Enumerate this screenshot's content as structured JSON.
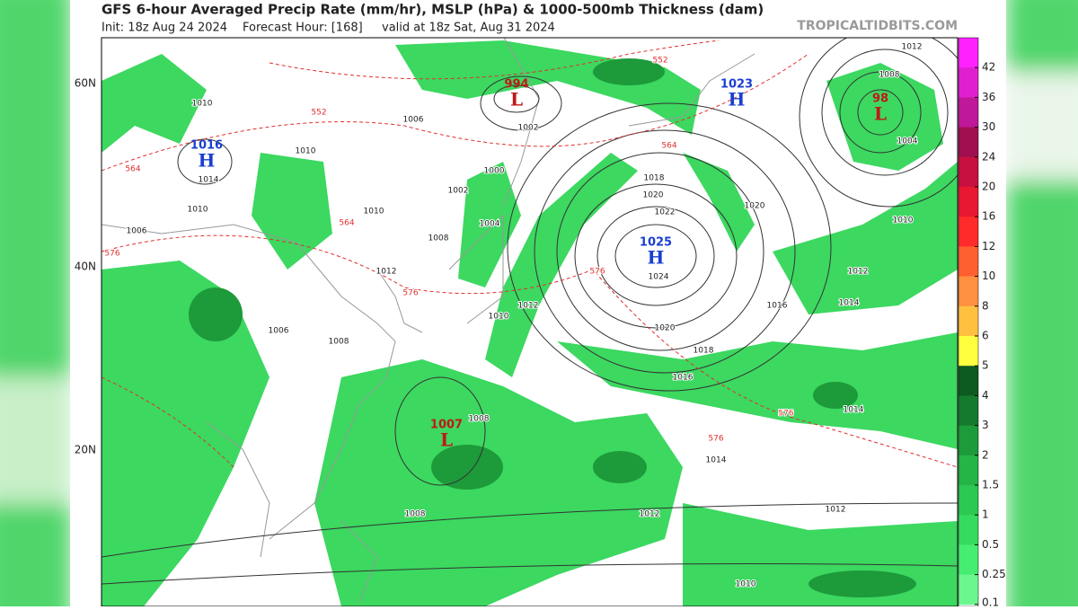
{
  "header": {
    "title": "GFS 6-hour Averaged Precip Rate (mm/hr), MSLP (hPa) & 1000-500mb Thickness (dam)",
    "init": "Init: 18z Aug 24 2024",
    "forecast_hour": "Forecast Hour: [168]",
    "valid": "valid at 18z Sat, Aug 31 2024",
    "site": "TROPICALTIDBITS.COM"
  },
  "map": {
    "lat_labels": [
      "60N",
      "40N",
      "20N"
    ],
    "centers": [
      {
        "symbol": "H",
        "pressure": 1025,
        "color": "#1a3fd0"
      },
      {
        "symbol": "L",
        "pressure": 994,
        "color": "#c01818"
      },
      {
        "symbol": "H",
        "pressure": 1023,
        "color": "#1a3fd0"
      },
      {
        "symbol": "L",
        "pressure": "98",
        "color": "#c01818"
      },
      {
        "symbol": "H",
        "pressure": 1016,
        "color": "#1a3fd0"
      },
      {
        "symbol": "L",
        "pressure": 1007,
        "color": "#c01818"
      }
    ],
    "isobar_labels": [
      1020,
      1022,
      1024,
      1020,
      1018,
      1016,
      1018,
      1014,
      1012,
      1012,
      1010,
      1008,
      1008,
      1010,
      1012,
      1014,
      1016,
      1020,
      1002,
      1000,
      1002,
      1004,
      1006,
      1008,
      1010,
      1012,
      1010,
      1010,
      1010,
      1006,
      1006,
      1004,
      1008,
      1012,
      1014,
      1010,
      1012,
      1008,
      1014
    ],
    "thickness_labels": [
      552,
      564,
      576,
      576,
      564,
      552,
      576,
      564,
      576,
      576
    ]
  },
  "colorbar": {
    "ticks": [
      42,
      36,
      30,
      24,
      20,
      16,
      12,
      10,
      8,
      6,
      5,
      4,
      3,
      2,
      1.5,
      1,
      0.5,
      0.25,
      0.1
    ],
    "colors": [
      "#ff22ff",
      "#e020d0",
      "#c0189a",
      "#a01050",
      "#c81040",
      "#e81830",
      "#ff2a2a",
      "#ff6030",
      "#ff9040",
      "#ffc040",
      "#ffff40",
      "#0d5a20",
      "#157a2e",
      "#1d9a3a",
      "#25b545",
      "#2cc852",
      "#35db5e",
      "#45ee70",
      "#6cf78e"
    ]
  }
}
